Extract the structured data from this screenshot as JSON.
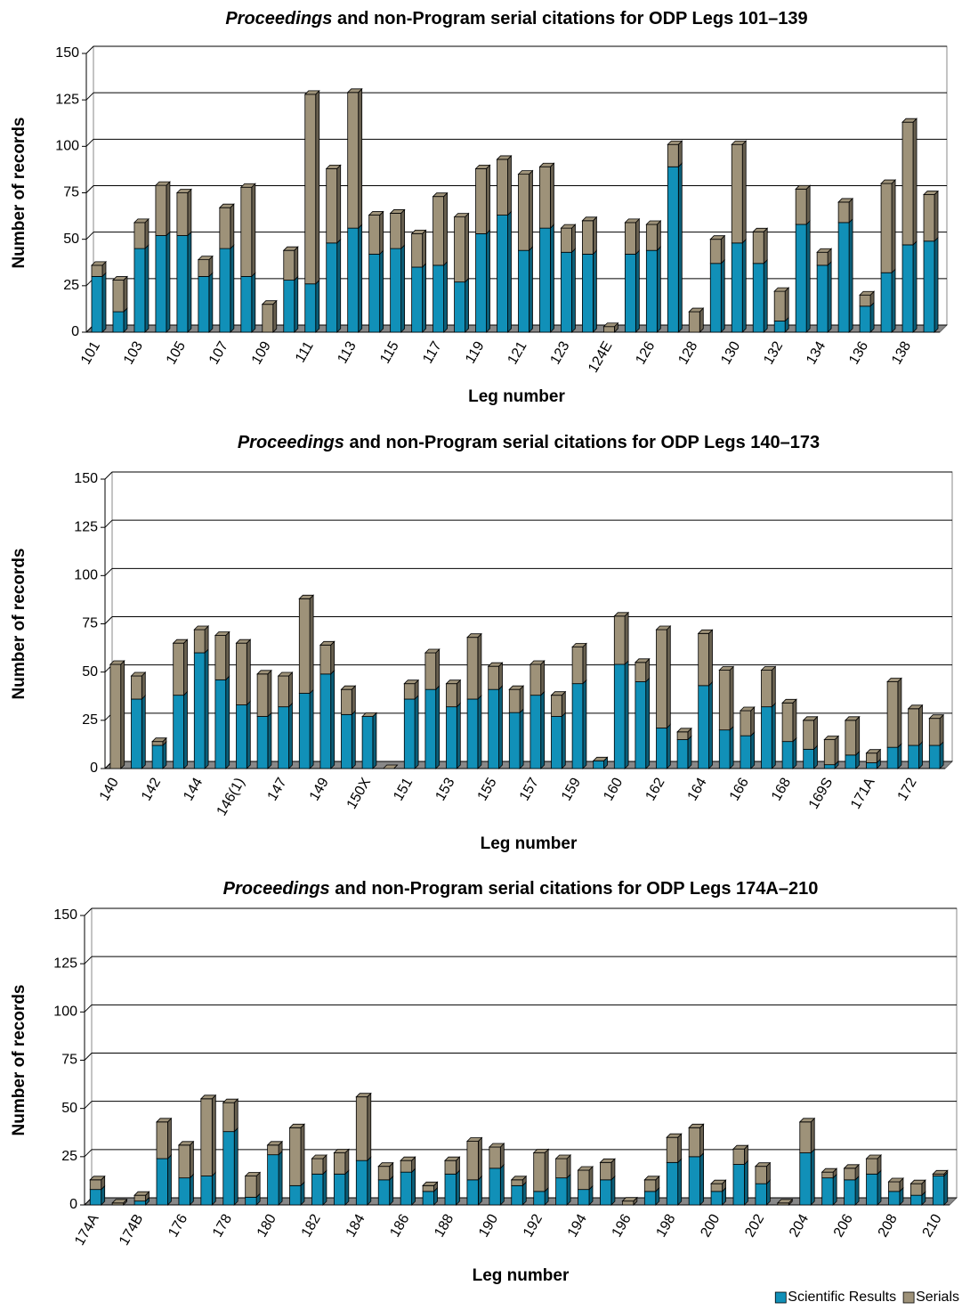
{
  "chart_data": [
    {
      "type": "bar",
      "stacked": true,
      "title": "Proceedings and non-Program serial citations for ODP Legs 101–139",
      "x_label": "Leg number",
      "y_label": "Number of records",
      "categories": [
        "101",
        null,
        "103",
        null,
        "105",
        null,
        "107",
        null,
        "109",
        null,
        "111",
        null,
        "113",
        null,
        "115",
        null,
        "117",
        null,
        "119",
        null,
        "121",
        null,
        "123",
        null,
        "124E",
        null,
        "126",
        null,
        "128",
        null,
        "130",
        null,
        "132",
        null,
        "134",
        null,
        "136",
        null,
        "138",
        null
      ],
      "series": [
        {
          "color": "#1190b8",
          "values": [
            30,
            11,
            45,
            52,
            52,
            30,
            45,
            30,
            0,
            28,
            26,
            48,
            56,
            42,
            45,
            35,
            36,
            27,
            53,
            63,
            44,
            56,
            43,
            42,
            0,
            42,
            44,
            89,
            0,
            37,
            48,
            37,
            6,
            58,
            36,
            59,
            14,
            32,
            47,
            49
          ]
        },
        {
          "color": "#9e9279",
          "values": [
            6,
            17,
            14,
            27,
            23,
            9,
            22,
            48,
            15,
            16,
            102,
            40,
            73,
            21,
            19,
            18,
            37,
            35,
            35,
            30,
            41,
            33,
            13,
            18,
            3,
            17,
            14,
            12,
            11,
            13,
            53,
            17,
            16,
            19,
            7,
            11,
            6,
            48,
            66,
            25
          ]
        }
      ],
      "ylim": [
        0,
        150
      ],
      "yticks": [
        0,
        25,
        50,
        75,
        100,
        125,
        150
      ],
      "grid": true
    },
    {
      "type": "bar",
      "stacked": true,
      "title": "Proceedings and non-Program serial citations for ODP Legs 140–173",
      "x_label": "Leg number",
      "y_label": "Number of records",
      "categories": [
        "140",
        null,
        "142",
        null,
        "144",
        null,
        "146(1)",
        null,
        "147",
        null,
        "149",
        null,
        "150X",
        null,
        "151",
        null,
        "153",
        null,
        "155",
        null,
        "157",
        null,
        "159",
        null,
        "160",
        null,
        "162",
        null,
        "164",
        null,
        "166",
        null,
        "168",
        null,
        "169S",
        null,
        "171A",
        null,
        "172",
        null
      ],
      "series": [
        {
          "color": "#1190b8",
          "values": [
            0,
            36,
            12,
            38,
            60,
            46,
            33,
            27,
            32,
            39,
            49,
            28,
            27,
            0,
            36,
            41,
            32,
            36,
            41,
            29,
            38,
            27,
            44,
            4,
            54,
            45,
            21,
            15,
            43,
            20,
            17,
            32,
            14,
            10,
            2,
            7,
            3,
            11,
            12,
            12
          ]
        },
        {
          "color": "#9e9279",
          "values": [
            54,
            12,
            2,
            27,
            12,
            23,
            32,
            22,
            16,
            49,
            15,
            13,
            0,
            0,
            8,
            19,
            12,
            32,
            12,
            12,
            16,
            11,
            19,
            0,
            25,
            10,
            51,
            4,
            27,
            31,
            13,
            19,
            20,
            15,
            13,
            18,
            5,
            34,
            19,
            14
          ]
        }
      ],
      "ylim": [
        0,
        150
      ],
      "yticks": [
        0,
        25,
        50,
        75,
        100,
        125,
        150
      ],
      "grid": true
    },
    {
      "type": "bar",
      "stacked": true,
      "title": "Proceedings and non-Program serial citations for ODP Legs 174A–210",
      "x_label": "Leg number",
      "y_label": "Number of records",
      "categories": [
        "174A",
        null,
        "174B",
        null,
        "176",
        null,
        "178",
        null,
        "180",
        null,
        "182",
        null,
        "184",
        null,
        "186",
        null,
        "188",
        null,
        "190",
        null,
        "192",
        null,
        "194",
        null,
        "196",
        null,
        "198",
        null,
        "200",
        null,
        "202",
        null,
        "204",
        null,
        "206",
        null,
        "208",
        null,
        "210"
      ],
      "series": [
        {
          "name": "Scientific Results",
          "color": "#1190b8",
          "values": [
            8,
            0,
            2,
            24,
            14,
            15,
            38,
            4,
            26,
            10,
            16,
            16,
            23,
            13,
            17,
            7,
            16,
            13,
            19,
            10,
            7,
            14,
            8,
            13,
            0,
            7,
            22,
            25,
            7,
            21,
            11,
            0,
            27,
            14,
            13,
            16,
            7,
            5,
            15
          ]
        },
        {
          "name": "Serials",
          "color": "#9e9279",
          "values": [
            5,
            1,
            3,
            19,
            17,
            40,
            15,
            11,
            5,
            30,
            8,
            11,
            33,
            7,
            6,
            3,
            7,
            20,
            11,
            3,
            20,
            10,
            10,
            9,
            2,
            6,
            13,
            15,
            4,
            8,
            9,
            1,
            16,
            3,
            6,
            8,
            5,
            6,
            1
          ]
        }
      ],
      "ylim": [
        0,
        150
      ],
      "yticks": [
        0,
        25,
        50,
        75,
        100,
        125,
        150
      ],
      "grid": true,
      "legend": "bottom-right"
    }
  ]
}
